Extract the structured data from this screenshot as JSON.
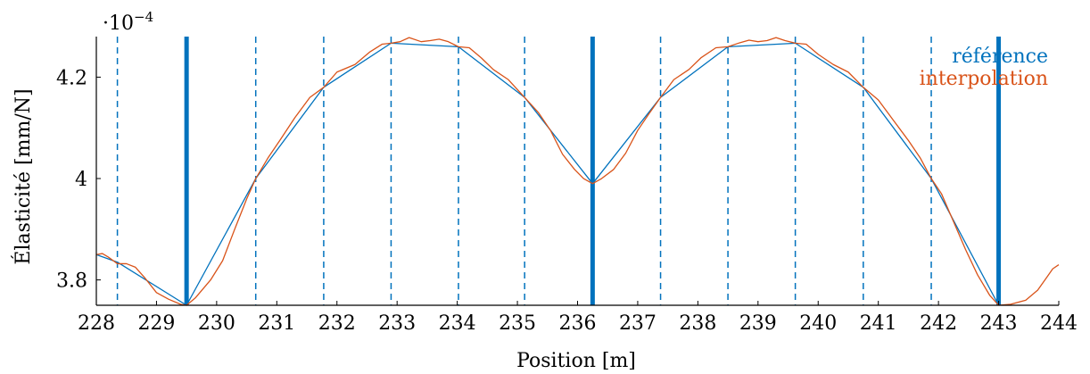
{
  "chart_data": {
    "type": "line",
    "title": "",
    "xlabel": "Position [m]",
    "ylabel": "Élasticité [mm/N]",
    "y_scale_note_base": "·10",
    "y_scale_note_exp": "−4",
    "xlim": [
      228,
      244
    ],
    "ylim": [
      3.75,
      4.28
    ],
    "xticks": [
      228,
      229,
      230,
      231,
      232,
      233,
      234,
      235,
      236,
      237,
      238,
      239,
      240,
      241,
      242,
      243,
      244
    ],
    "yticks": [
      {
        "value": 3.8,
        "label": "3.8"
      },
      {
        "value": 4.0,
        "label": "4"
      },
      {
        "value": 4.2,
        "label": "4.2"
      }
    ],
    "grid": false,
    "legend_position": "top-right",
    "colors": {
      "reference": "#0072bd",
      "interpolation": "#d95319"
    },
    "vertical_lines": {
      "solid": [
        229.5,
        236.25,
        243.0
      ],
      "dashed": [
        228.35,
        230.65,
        231.78,
        232.9,
        234.02,
        235.12,
        237.38,
        238.5,
        239.62,
        240.75,
        241.88
      ]
    },
    "series": [
      {
        "name": "référence",
        "key": "reference",
        "points": [
          [
            228.0,
            3.85
          ],
          [
            228.35,
            3.835
          ],
          [
            229.5,
            3.75
          ],
          [
            230.65,
            4.0
          ],
          [
            231.78,
            4.18
          ],
          [
            232.9,
            4.267
          ],
          [
            234.02,
            4.26
          ],
          [
            235.12,
            4.16
          ],
          [
            236.25,
            3.99
          ],
          [
            237.38,
            4.16
          ],
          [
            238.5,
            4.26
          ],
          [
            239.62,
            4.267
          ],
          [
            240.75,
            4.18
          ],
          [
            241.88,
            4.0
          ],
          [
            243.0,
            3.75
          ]
        ]
      },
      {
        "name": "interpolation",
        "key": "interpolation",
        "points": [
          [
            228.0,
            3.85
          ],
          [
            228.1,
            3.852
          ],
          [
            228.2,
            3.845
          ],
          [
            228.35,
            3.832
          ],
          [
            228.5,
            3.832
          ],
          [
            228.65,
            3.825
          ],
          [
            228.8,
            3.805
          ],
          [
            229.0,
            3.775
          ],
          [
            229.2,
            3.762
          ],
          [
            229.4,
            3.752
          ],
          [
            229.5,
            3.75
          ],
          [
            229.65,
            3.765
          ],
          [
            229.9,
            3.8
          ],
          [
            230.1,
            3.838
          ],
          [
            230.3,
            3.9
          ],
          [
            230.5,
            3.96
          ],
          [
            230.65,
            4.0
          ],
          [
            230.85,
            4.04
          ],
          [
            231.05,
            4.075
          ],
          [
            231.3,
            4.12
          ],
          [
            231.55,
            4.16
          ],
          [
            231.78,
            4.18
          ],
          [
            232.0,
            4.21
          ],
          [
            232.3,
            4.225
          ],
          [
            232.55,
            4.25
          ],
          [
            232.75,
            4.265
          ],
          [
            232.9,
            4.267
          ],
          [
            233.05,
            4.27
          ],
          [
            233.2,
            4.278
          ],
          [
            233.4,
            4.27
          ],
          [
            233.55,
            4.272
          ],
          [
            233.7,
            4.275
          ],
          [
            233.85,
            4.27
          ],
          [
            234.02,
            4.26
          ],
          [
            234.2,
            4.258
          ],
          [
            234.4,
            4.238
          ],
          [
            234.6,
            4.215
          ],
          [
            234.85,
            4.195
          ],
          [
            235.12,
            4.16
          ],
          [
            235.35,
            4.13
          ],
          [
            235.55,
            4.095
          ],
          [
            235.75,
            4.048
          ],
          [
            235.95,
            4.018
          ],
          [
            236.1,
            4.0
          ],
          [
            236.25,
            3.99
          ],
          [
            236.4,
            4.0
          ],
          [
            236.6,
            4.018
          ],
          [
            236.8,
            4.05
          ],
          [
            237.0,
            4.095
          ],
          [
            237.2,
            4.13
          ],
          [
            237.38,
            4.16
          ],
          [
            237.6,
            4.195
          ],
          [
            237.85,
            4.215
          ],
          [
            238.05,
            4.238
          ],
          [
            238.3,
            4.258
          ],
          [
            238.5,
            4.26
          ],
          [
            238.7,
            4.268
          ],
          [
            238.85,
            4.273
          ],
          [
            239.0,
            4.27
          ],
          [
            239.15,
            4.272
          ],
          [
            239.3,
            4.278
          ],
          [
            239.45,
            4.272
          ],
          [
            239.62,
            4.267
          ],
          [
            239.8,
            4.265
          ],
          [
            240.0,
            4.245
          ],
          [
            240.25,
            4.225
          ],
          [
            240.5,
            4.21
          ],
          [
            240.75,
            4.18
          ],
          [
            241.0,
            4.155
          ],
          [
            241.25,
            4.115
          ],
          [
            241.5,
            4.075
          ],
          [
            241.7,
            4.04
          ],
          [
            241.88,
            4.0
          ],
          [
            242.05,
            3.97
          ],
          [
            242.25,
            3.915
          ],
          [
            242.45,
            3.86
          ],
          [
            242.65,
            3.81
          ],
          [
            242.85,
            3.77
          ],
          [
            243.0,
            3.75
          ],
          [
            243.2,
            3.752
          ],
          [
            243.45,
            3.76
          ],
          [
            243.65,
            3.78
          ],
          [
            243.8,
            3.805
          ],
          [
            243.9,
            3.822
          ],
          [
            244.0,
            3.83
          ]
        ]
      }
    ]
  }
}
